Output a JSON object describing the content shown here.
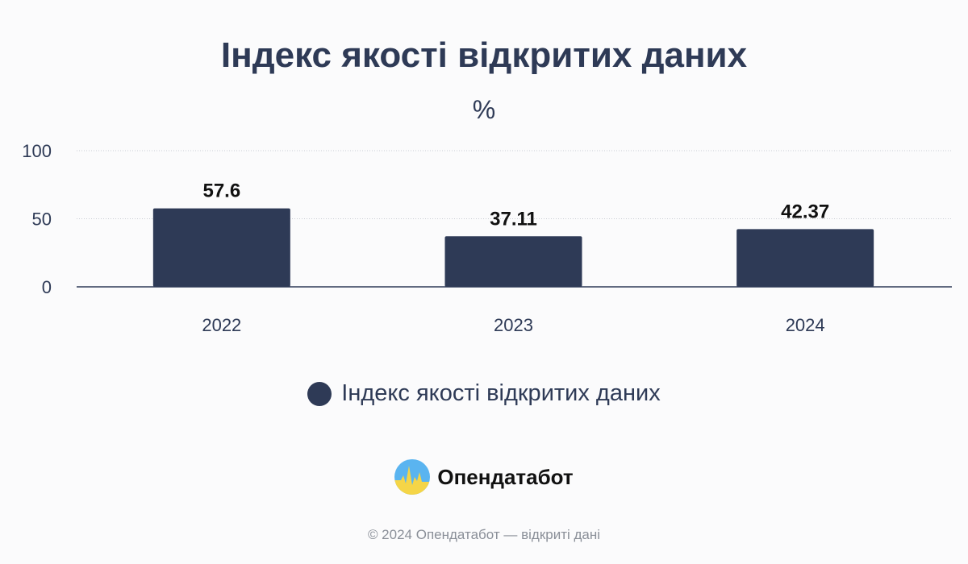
{
  "colors": {
    "bar": "#2e3a56",
    "text": "#2e3a56",
    "grid": "#c9ccd3",
    "axis": "#2e3a56",
    "footer": "#8a8f98"
  },
  "chart_data": {
    "type": "bar",
    "title": "Індекс якості відкритих даних",
    "subtitle": "%",
    "categories": [
      "2022",
      "2023",
      "2024"
    ],
    "series": [
      {
        "name": "Індекс якості відкритих даних",
        "values": [
          57.6,
          37.11,
          42.37
        ],
        "labels": [
          "57.6",
          "37.11",
          "42.37"
        ]
      }
    ],
    "ylim": [
      0,
      100
    ],
    "yticks": [
      0,
      50,
      100
    ],
    "grid": true,
    "legend_position": "bottom"
  },
  "brand": {
    "name": "Опендатабот",
    "logo_icon": "opendatabot-logo-icon"
  },
  "footer": {
    "text": "© 2024 Опендатабот — відкриті дані"
  }
}
